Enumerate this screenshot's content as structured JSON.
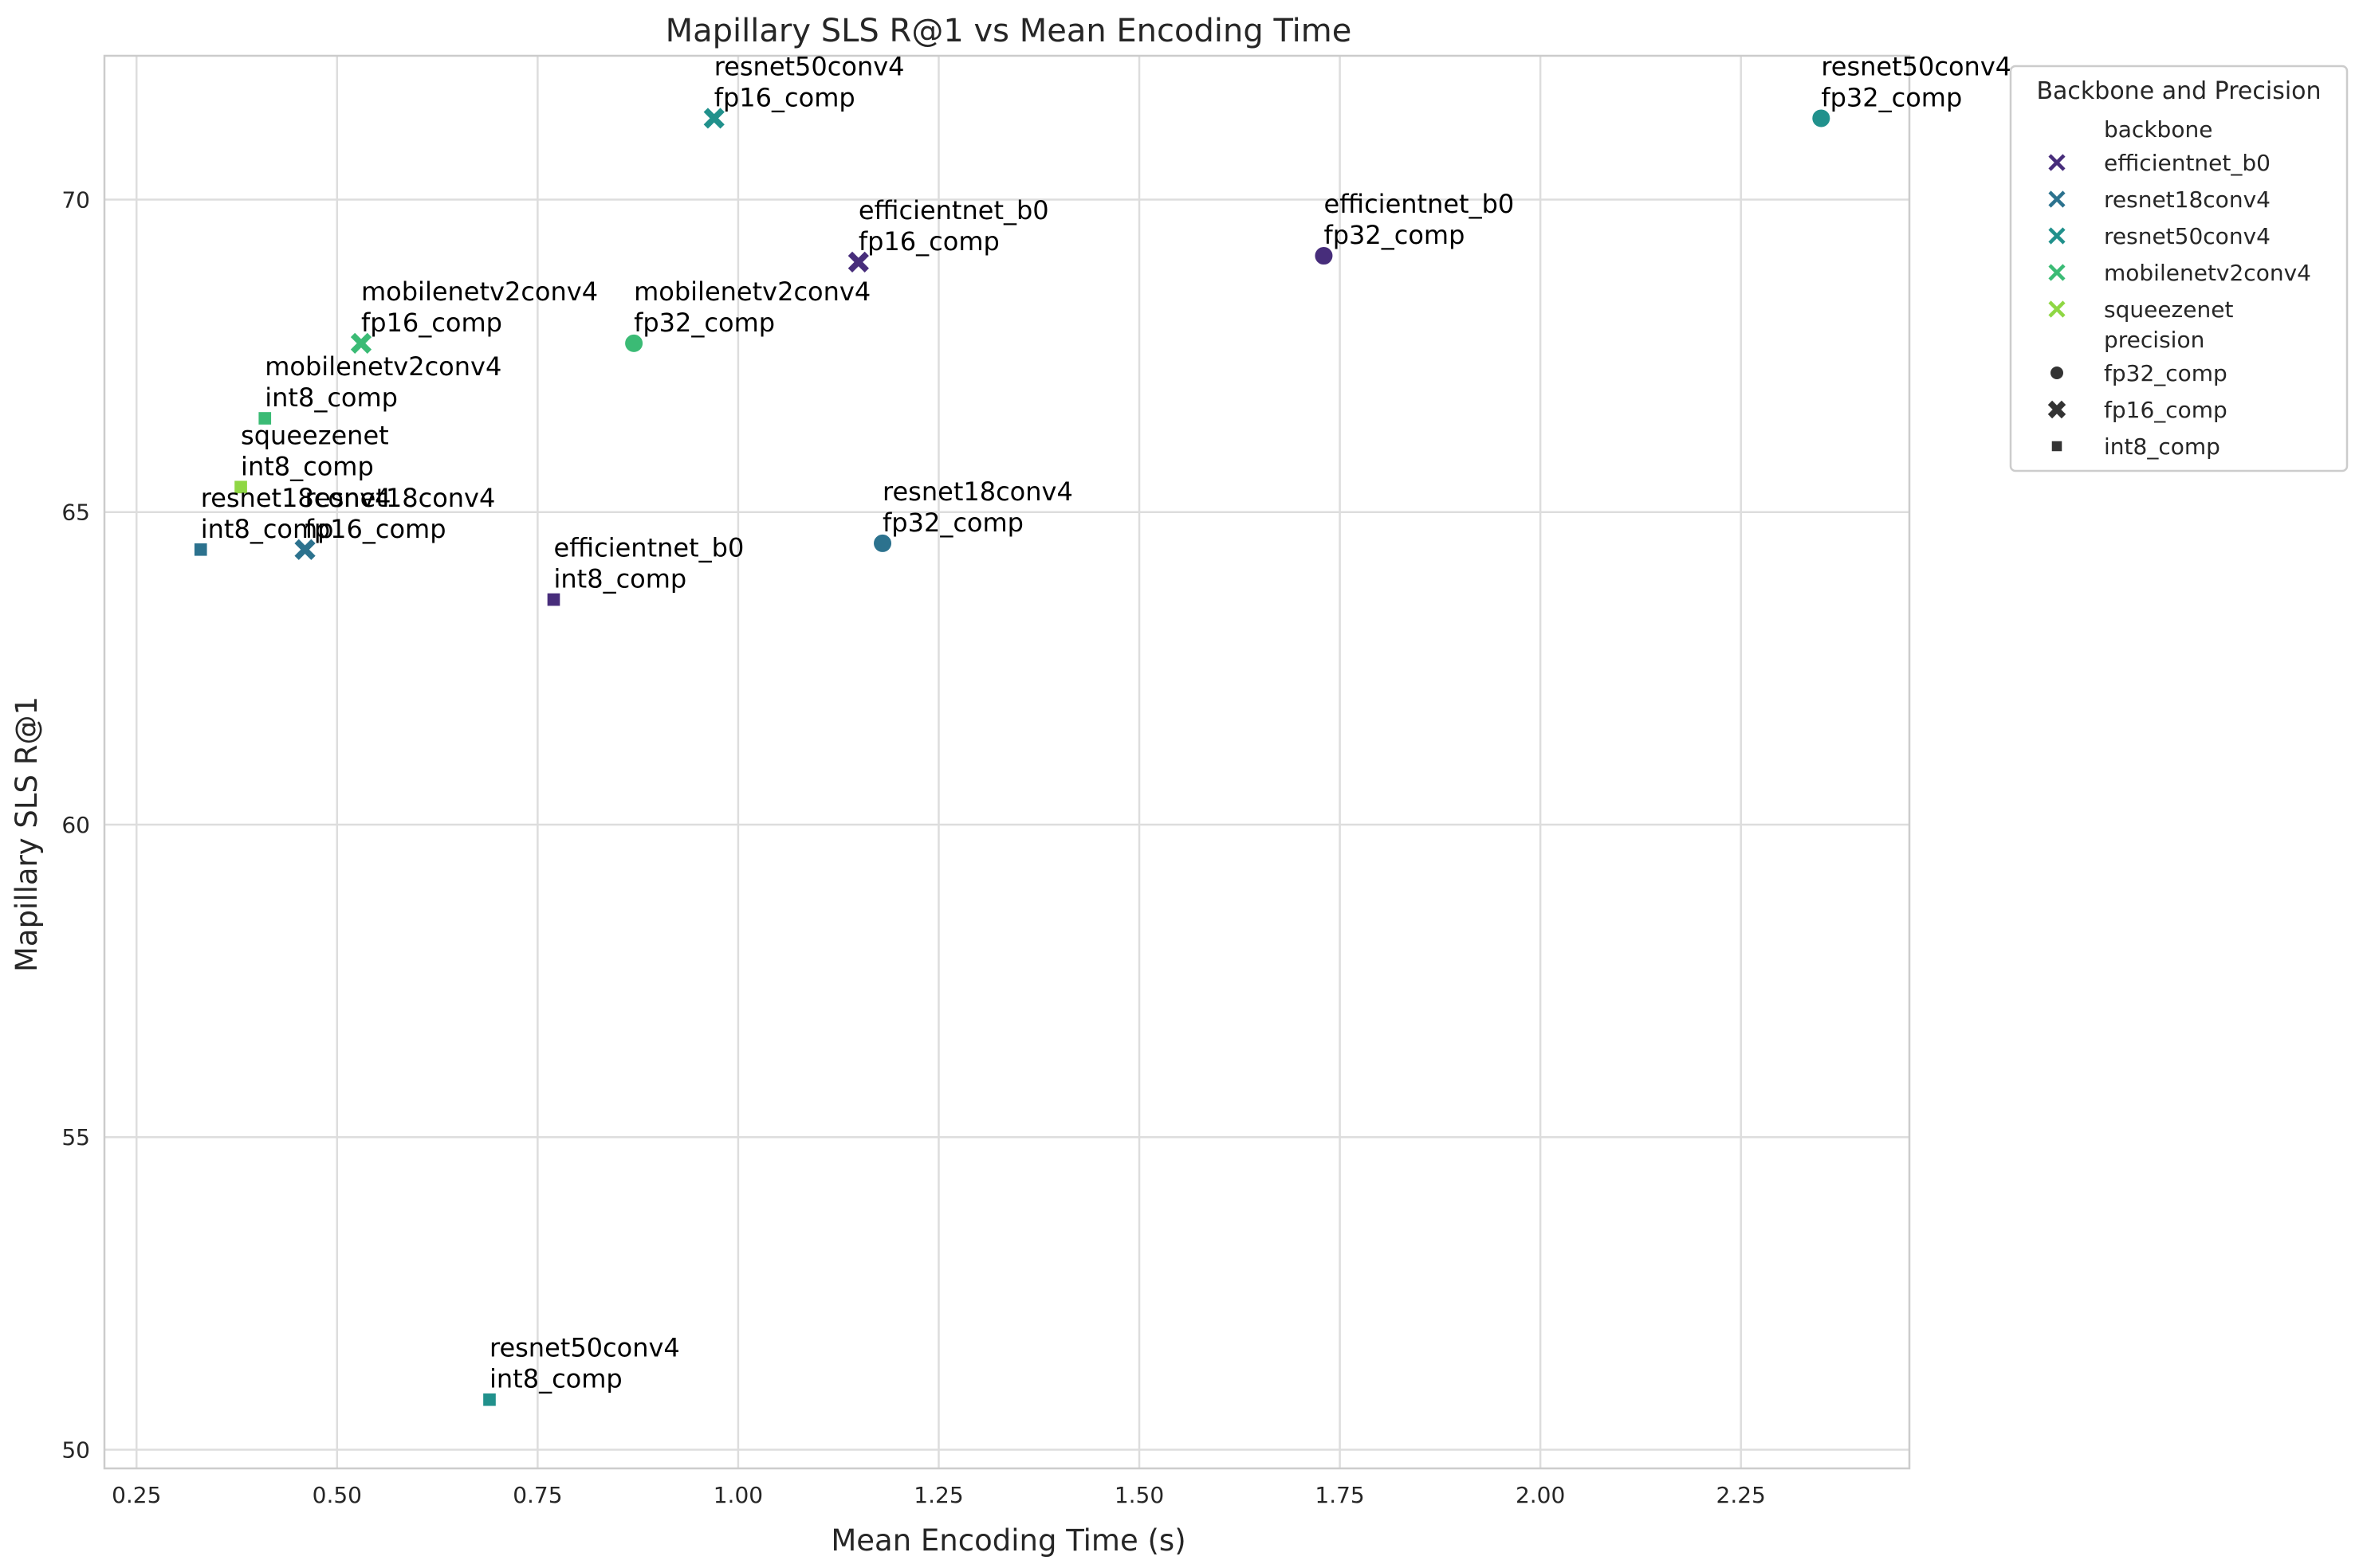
{
  "chart_data": {
    "type": "scatter",
    "title": "Mapillary SLS R@1 vs Mean Encoding Time",
    "xlabel": "Mean Encoding Time (s)",
    "ylabel": "Mapillary SLS R@1",
    "xlim": [
      0.21,
      2.46
    ],
    "ylim": [
      49.7,
      72.3
    ],
    "x_ticks": [
      0.25,
      0.5,
      0.75,
      1.0,
      1.25,
      1.5,
      1.75,
      2.0,
      2.25
    ],
    "x_tick_labels": [
      "0.25",
      "0.50",
      "0.75",
      "1.00",
      "1.25",
      "1.50",
      "1.75",
      "2.00",
      "2.25"
    ],
    "y_ticks": [
      50,
      55,
      60,
      65,
      70
    ],
    "y_tick_labels": [
      "50",
      "55",
      "60",
      "65",
      "70"
    ],
    "grid": true,
    "legend": {
      "title": "Backbone and Precision",
      "placement": "outside-top-right",
      "backbone_header": "backbone",
      "precision_header": "precision",
      "backbones": [
        {
          "name": "efficientnet_b0",
          "color": "#472d7b"
        },
        {
          "name": "resnet18conv4",
          "color": "#2c728e"
        },
        {
          "name": "resnet50conv4",
          "color": "#21918c"
        },
        {
          "name": "mobilenetv2conv4",
          "color": "#3bbb75"
        },
        {
          "name": "squeezenet",
          "color": "#8fd744"
        }
      ],
      "precisions": [
        {
          "name": "fp32_comp",
          "marker": "circle"
        },
        {
          "name": "fp16_comp",
          "marker": "x"
        },
        {
          "name": "int8_comp",
          "marker": "square"
        }
      ]
    },
    "points": [
      {
        "backbone": "resnet50conv4",
        "precision": "fp32_comp",
        "x": 2.35,
        "y": 71.3,
        "label": [
          "resnet50conv4",
          "fp32_comp"
        ]
      },
      {
        "backbone": "resnet50conv4",
        "precision": "fp16_comp",
        "x": 0.97,
        "y": 71.3,
        "label": [
          "resnet50conv4",
          "fp16_comp"
        ]
      },
      {
        "backbone": "efficientnet_b0",
        "precision": "fp16_comp",
        "x": 1.15,
        "y": 69.0,
        "label": [
          "efficientnet_b0",
          "fp16_comp"
        ]
      },
      {
        "backbone": "efficientnet_b0",
        "precision": "fp32_comp",
        "x": 1.73,
        "y": 69.1,
        "label": [
          "efficientnet_b0",
          "fp32_comp"
        ]
      },
      {
        "backbone": "mobilenetv2conv4",
        "precision": "fp16_comp",
        "x": 0.53,
        "y": 67.7,
        "label": [
          "mobilenetv2conv4",
          "fp16_comp"
        ]
      },
      {
        "backbone": "mobilenetv2conv4",
        "precision": "fp32_comp",
        "x": 0.87,
        "y": 67.7,
        "label": [
          "mobilenetv2conv4",
          "fp32_comp"
        ]
      },
      {
        "backbone": "mobilenetv2conv4",
        "precision": "int8_comp",
        "x": 0.41,
        "y": 66.5,
        "label": [
          "mobilenetv2conv4",
          "int8_comp"
        ]
      },
      {
        "backbone": "squeezenet",
        "precision": "int8_comp",
        "x": 0.38,
        "y": 65.4,
        "label": [
          "squeezenet",
          "int8_comp"
        ]
      },
      {
        "backbone": "resnet18conv4",
        "precision": "int8_comp",
        "x": 0.33,
        "y": 64.4,
        "label": [
          "resnet18conv4",
          "int8_comp"
        ]
      },
      {
        "backbone": "resnet18conv4",
        "precision": "fp16_comp",
        "x": 0.46,
        "y": 64.4,
        "label": [
          "resnet18conv4",
          "fp16_comp"
        ]
      },
      {
        "backbone": "resnet18conv4",
        "precision": "fp32_comp",
        "x": 1.18,
        "y": 64.5,
        "label": [
          "resnet18conv4",
          "fp32_comp"
        ]
      },
      {
        "backbone": "efficientnet_b0",
        "precision": "int8_comp",
        "x": 0.77,
        "y": 63.6,
        "label": [
          "efficientnet_b0",
          "int8_comp"
        ]
      },
      {
        "backbone": "resnet50conv4",
        "precision": "int8_comp",
        "x": 0.69,
        "y": 50.8,
        "label": [
          "resnet50conv4",
          "int8_comp"
        ]
      }
    ]
  }
}
